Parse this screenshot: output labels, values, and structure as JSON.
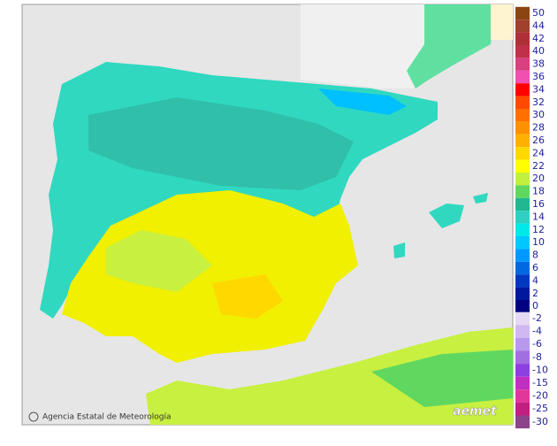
{
  "legend": {
    "positive": [
      {
        "label": "50",
        "color": "#8b4513"
      },
      {
        "label": "44",
        "color": "#a0402d"
      },
      {
        "label": "42",
        "color": "#b03038"
      },
      {
        "label": "40",
        "color": "#c03048"
      },
      {
        "label": "38",
        "color": "#d84080"
      },
      {
        "label": "36",
        "color": "#f050b0"
      },
      {
        "label": "34",
        "color": "#ff0000"
      },
      {
        "label": "32",
        "color": "#ff4a00"
      },
      {
        "label": "30",
        "color": "#ff7000"
      },
      {
        "label": "28",
        "color": "#ff9000"
      },
      {
        "label": "26",
        "color": "#ffb000"
      },
      {
        "label": "24",
        "color": "#ffd800"
      },
      {
        "label": "22",
        "color": "#ffff00"
      },
      {
        "label": "20",
        "color": "#c0f040"
      },
      {
        "label": "18",
        "color": "#60d860"
      },
      {
        "label": "16",
        "color": "#20b890"
      },
      {
        "label": "14",
        "color": "#30d0c0"
      },
      {
        "label": "12",
        "color": "#00e8e8"
      },
      {
        "label": "10",
        "color": "#00c8ff"
      },
      {
        "label": "8",
        "color": "#0098ff"
      },
      {
        "label": "6",
        "color": "#0068e0"
      },
      {
        "label": "4",
        "color": "#0038c0"
      },
      {
        "label": "2",
        "color": "#0018a0"
      },
      {
        "label": "0",
        "color": "#000080"
      }
    ],
    "negative": [
      {
        "label": "-2",
        "color": "#e4d8f4"
      },
      {
        "label": "-4",
        "color": "#d0b8f0"
      },
      {
        "label": "-6",
        "color": "#b898ec"
      },
      {
        "label": "-8",
        "color": "#a070e0"
      },
      {
        "label": "-10",
        "color": "#8c40e0"
      },
      {
        "label": "-15",
        "color": "#c030c0"
      },
      {
        "label": "-20",
        "color": "#e03898"
      },
      {
        "label": "-25",
        "color": "#c02080"
      },
      {
        "label": "-30",
        "color": "#8c4488"
      }
    ]
  },
  "credit": "Agencia Estatal de Meteorología",
  "logo": "aemet"
}
